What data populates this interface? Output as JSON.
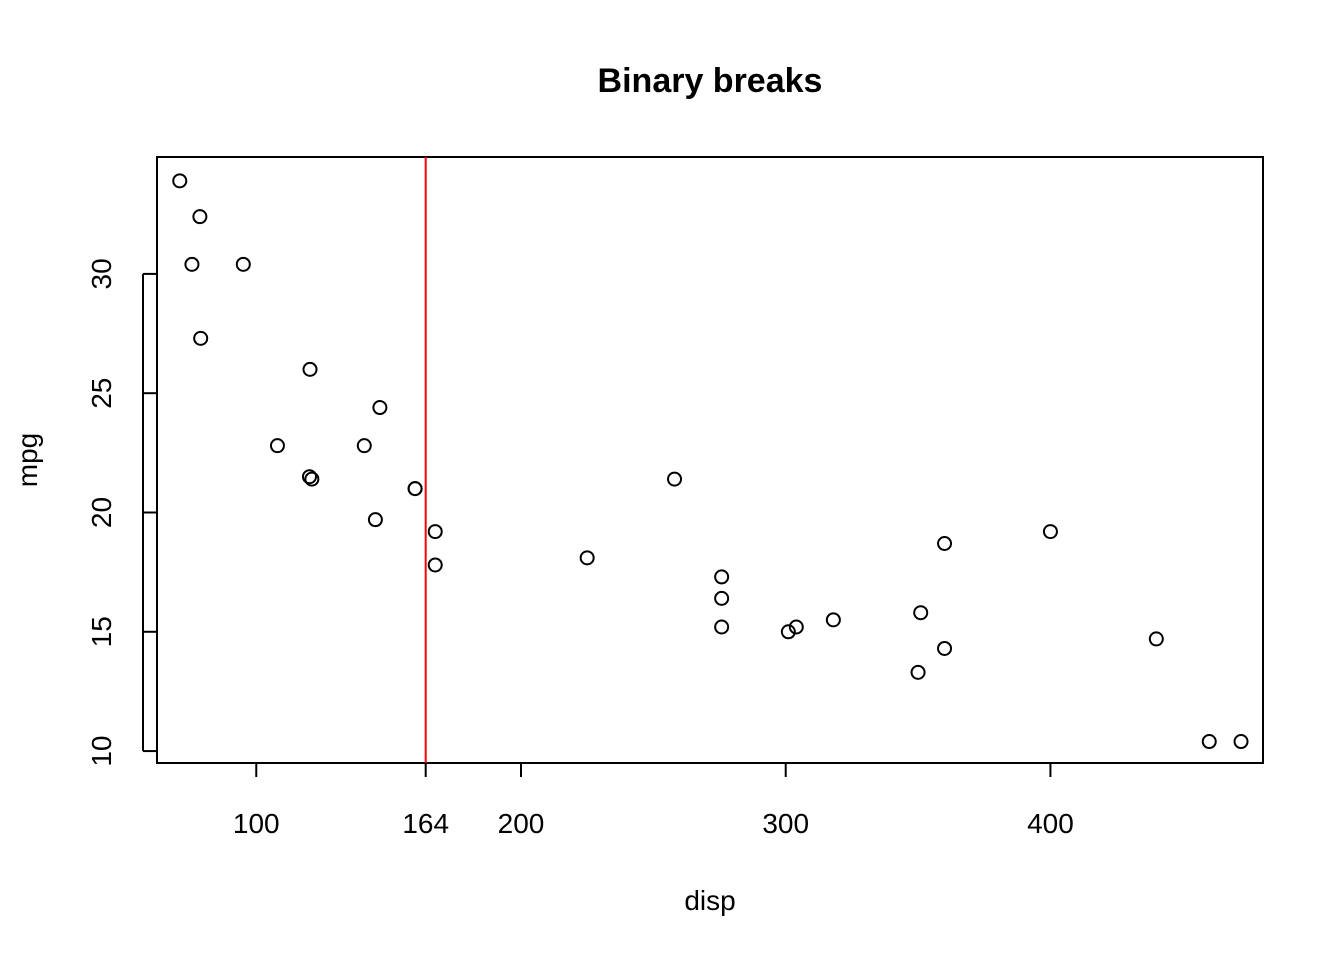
{
  "chart_data": {
    "type": "scatter",
    "title": "Binary breaks",
    "xlabel": "disp",
    "ylabel": "mpg",
    "xlim": [
      62.5,
      480.3
    ],
    "ylim": [
      9.5,
      34.9
    ],
    "x_ticks": [
      100,
      164,
      200,
      300,
      400
    ],
    "y_ticks": [
      10,
      15,
      20,
      25,
      30
    ],
    "grid": false,
    "legend": "none",
    "reference_line": {
      "orientation": "vertical",
      "x": 164,
      "color": "#ff0000"
    },
    "points": [
      {
        "x": 160,
        "y": 21.0
      },
      {
        "x": 160,
        "y": 21.0
      },
      {
        "x": 108,
        "y": 22.8
      },
      {
        "x": 258,
        "y": 21.4
      },
      {
        "x": 360,
        "y": 18.7
      },
      {
        "x": 225,
        "y": 18.1
      },
      {
        "x": 360,
        "y": 14.3
      },
      {
        "x": 146.7,
        "y": 24.4
      },
      {
        "x": 140.8,
        "y": 22.8
      },
      {
        "x": 167.6,
        "y": 19.2
      },
      {
        "x": 167.6,
        "y": 17.8
      },
      {
        "x": 275.8,
        "y": 16.4
      },
      {
        "x": 275.8,
        "y": 17.3
      },
      {
        "x": 275.8,
        "y": 15.2
      },
      {
        "x": 472,
        "y": 10.4
      },
      {
        "x": 460,
        "y": 10.4
      },
      {
        "x": 440,
        "y": 14.7
      },
      {
        "x": 78.7,
        "y": 32.4
      },
      {
        "x": 75.7,
        "y": 30.4
      },
      {
        "x": 71.1,
        "y": 33.9
      },
      {
        "x": 120.1,
        "y": 21.5
      },
      {
        "x": 318,
        "y": 15.5
      },
      {
        "x": 304,
        "y": 15.2
      },
      {
        "x": 350,
        "y": 13.3
      },
      {
        "x": 400,
        "y": 19.2
      },
      {
        "x": 79,
        "y": 27.3
      },
      {
        "x": 120.3,
        "y": 26.0
      },
      {
        "x": 95.1,
        "y": 30.4
      },
      {
        "x": 351,
        "y": 15.8
      },
      {
        "x": 145,
        "y": 19.7
      },
      {
        "x": 301,
        "y": 15.0
      },
      {
        "x": 121,
        "y": 21.4
      }
    ]
  }
}
